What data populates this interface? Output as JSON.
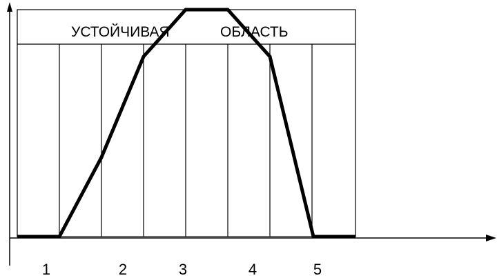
{
  "region_label_left": "УСТОЙЧИВАЯ",
  "region_label_right": "ОБЛАСТЬ",
  "tick_labels": [
    "1",
    "2",
    "3",
    "4",
    "5"
  ],
  "colors": {
    "line": "#000000",
    "background": "#ffffff"
  }
}
